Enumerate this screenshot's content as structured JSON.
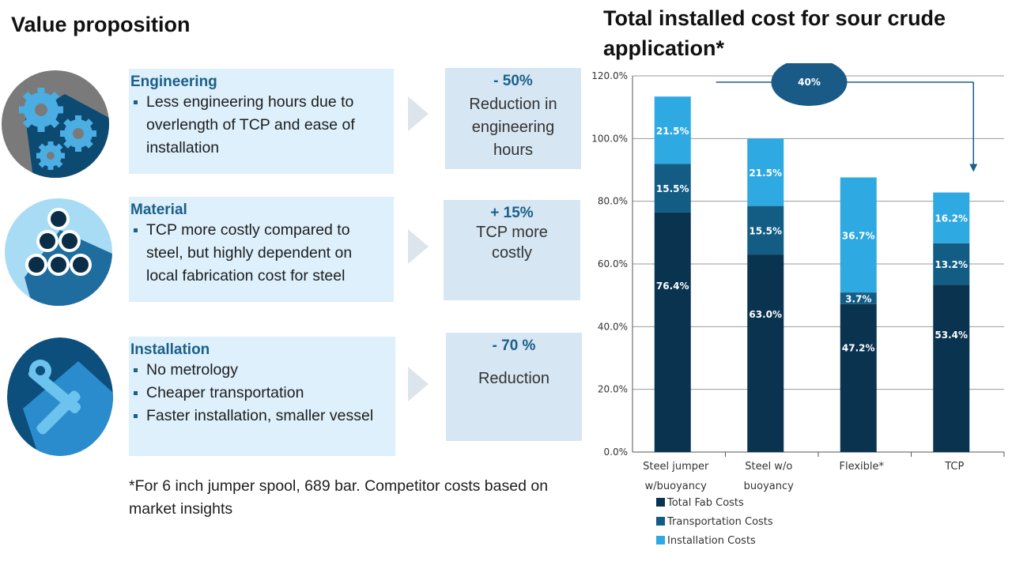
{
  "value_prop": {
    "title": "Value proposition",
    "rows": [
      {
        "icon": "gears-icon",
        "heading": "Engineering",
        "bullets": [
          "Less engineering hours due to overlength of TCP and ease of installation"
        ],
        "result_pct": "- 50%",
        "result_desc": "Reduction in engineering hours"
      },
      {
        "icon": "pipes-icon",
        "heading": "Material",
        "bullets": [
          "TCP more costly compared to steel, but highly dependent on local fabrication  cost for steel"
        ],
        "result_pct": "+ 15%",
        "result_desc": "TCP more costly"
      },
      {
        "icon": "tools-icon",
        "heading": "Installation",
        "bullets": [
          "No metrology",
          "Cheaper transportation",
          "Faster installation, smaller vessel"
        ],
        "result_pct": "- 70 %",
        "result_desc": "Reduction"
      }
    ],
    "footnote": "*For 6 inch jumper spool, 689 bar. Competitor costs based on market insights"
  },
  "colors": {
    "total_fab": "#0a3350",
    "transportation": "#135d85",
    "installation": "#2fa9e1",
    "accent": "#1b5f8a"
  },
  "chart_data": {
    "type": "bar",
    "stacked": true,
    "title": "Total installed cost for sour crude application*",
    "categories": [
      [
        "Steel jumper",
        "w/buoyancy"
      ],
      [
        "Steel w/o",
        "buoyancy"
      ],
      [
        "Flexible*"
      ],
      [
        "TCP"
      ]
    ],
    "series": [
      {
        "name": "Total Fab Costs",
        "color": "#0a3350",
        "values": [
          76.4,
          63.0,
          47.2,
          53.4
        ],
        "labels": [
          "76.4%",
          "63.0%",
          "47.2%",
          "53.4%"
        ]
      },
      {
        "name": "Transportation Costs",
        "color": "#135d85",
        "values": [
          15.5,
          15.5,
          3.7,
          13.2
        ],
        "labels": [
          "15.5%",
          "15.5%",
          "3.7%",
          "13.2%"
        ]
      },
      {
        "name": "Installation Costs",
        "color": "#2fa9e1",
        "values": [
          21.5,
          21.5,
          36.7,
          16.2
        ],
        "labels": [
          "21.5%",
          "21.5%",
          "36.7%",
          "16.2%"
        ]
      }
    ],
    "ylim": [
      0,
      120
    ],
    "yticks": [
      "0.0%",
      "20.0%",
      "40.0%",
      "60.0%",
      "80.0%",
      "100.0%",
      "120.0%"
    ],
    "grid": true,
    "legend_position": "bottom",
    "annotation": {
      "label": "40%",
      "from": "Steel jumper w/buoyancy",
      "to": "TCP"
    }
  }
}
